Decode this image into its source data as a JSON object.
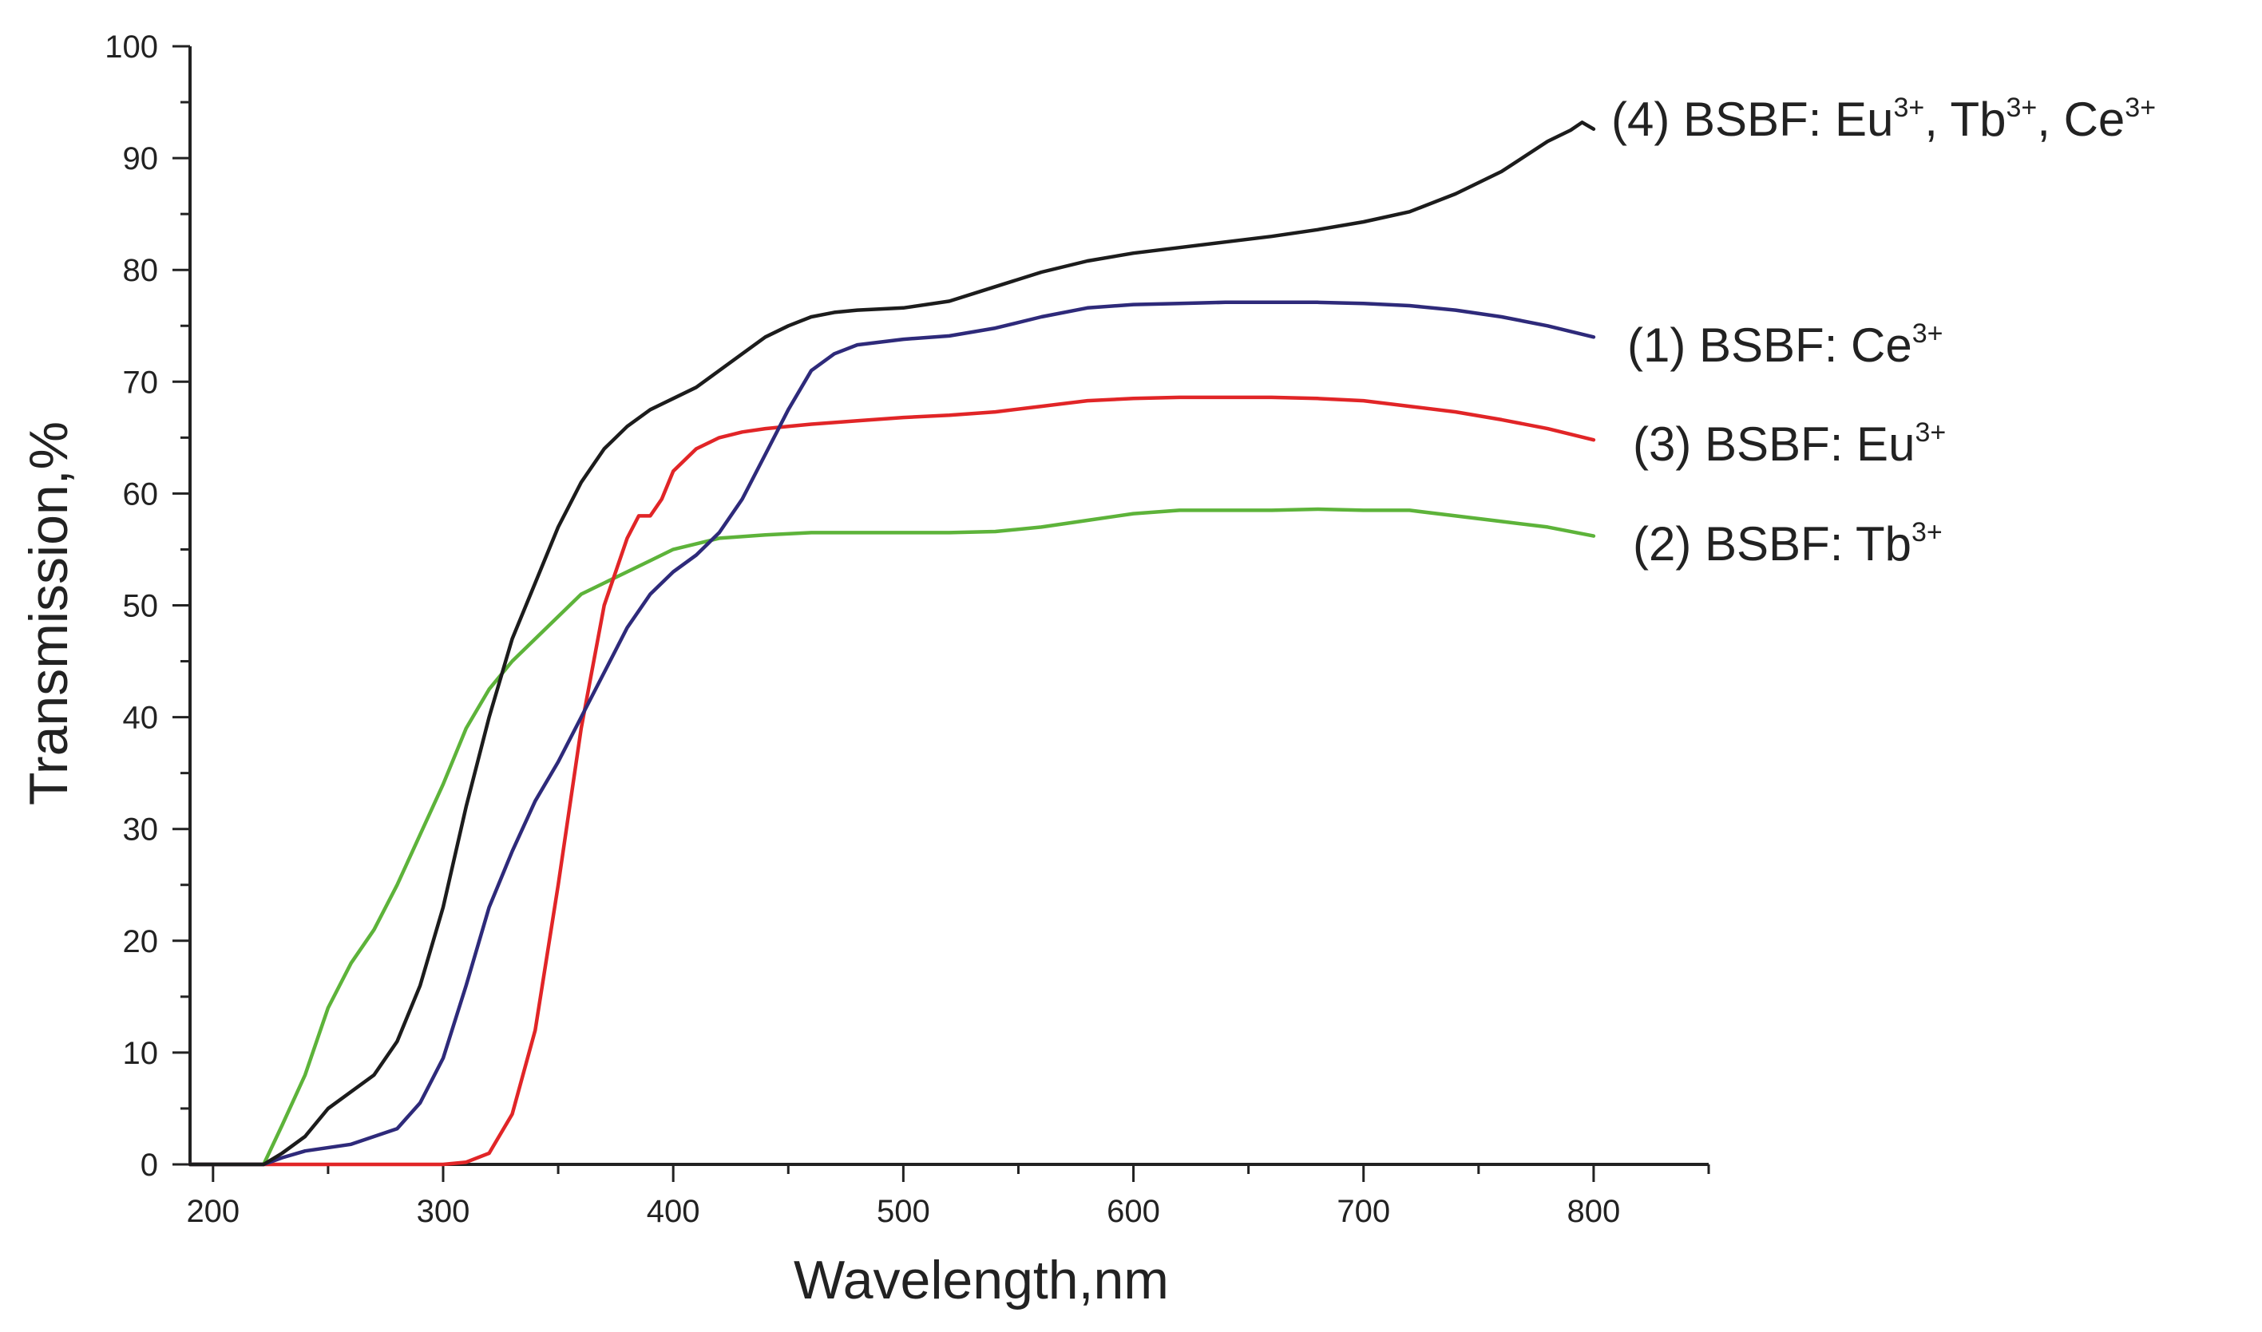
{
  "chart_data": {
    "type": "line",
    "xlabel": "Wavelength,nm",
    "ylabel": "Transmission,%",
    "xlim": [
      190,
      850
    ],
    "ylim": [
      0,
      100
    ],
    "xticks": [
      200,
      300,
      400,
      500,
      600,
      700,
      800
    ],
    "yticks": [
      0,
      10,
      20,
      30,
      40,
      50,
      60,
      70,
      80,
      90,
      100
    ],
    "grid": false,
    "series": [
      {
        "id": "s1",
        "name": "(1) BSBF: Ce",
        "sup": "3+",
        "color": "#2e2a7a",
        "x": [
          190,
          222,
          230,
          240,
          260,
          280,
          290,
          300,
          310,
          320,
          330,
          340,
          350,
          360,
          370,
          380,
          390,
          400,
          410,
          420,
          430,
          440,
          450,
          460,
          470,
          480,
          500,
          520,
          540,
          560,
          580,
          600,
          620,
          640,
          660,
          680,
          700,
          720,
          740,
          760,
          780,
          800
        ],
        "y": [
          0,
          0,
          0.6,
          1.2,
          1.8,
          3.2,
          5.5,
          9.5,
          16,
          23,
          28,
          32.5,
          36,
          40,
          44,
          48,
          51,
          53,
          54.5,
          56.5,
          59.5,
          63.5,
          67.5,
          71,
          72.5,
          73.3,
          73.8,
          74.1,
          74.8,
          75.8,
          76.6,
          76.9,
          77.0,
          77.1,
          77.1,
          77.1,
          77.0,
          76.8,
          76.4,
          75.8,
          75.0,
          74.0
        ]
      },
      {
        "id": "s2",
        "name": "(2) BSBF: Tb",
        "sup": "3+",
        "color": "#5db33a",
        "x": [
          190,
          222,
          230,
          240,
          250,
          260,
          270,
          280,
          290,
          300,
          310,
          320,
          330,
          340,
          350,
          360,
          370,
          380,
          390,
          400,
          410,
          420,
          440,
          460,
          480,
          500,
          520,
          540,
          560,
          580,
          600,
          620,
          640,
          660,
          680,
          700,
          720,
          740,
          760,
          780,
          800
        ],
        "y": [
          0,
          0,
          3.5,
          8,
          14,
          18,
          21,
          25,
          29.5,
          34,
          39,
          42.5,
          45,
          47,
          49,
          51,
          52,
          53,
          54,
          55,
          55.5,
          56,
          56.3,
          56.5,
          56.5,
          56.5,
          56.5,
          56.6,
          57.0,
          57.6,
          58.2,
          58.5,
          58.5,
          58.5,
          58.6,
          58.5,
          58.5,
          58.0,
          57.5,
          57.0,
          56.2
        ]
      },
      {
        "id": "s3",
        "name": "(3) BSBF: Eu",
        "sup": "3+",
        "color": "#e12527",
        "x": [
          190,
          300,
          310,
          320,
          330,
          340,
          350,
          360,
          370,
          380,
          385,
          390,
          395,
          400,
          410,
          420,
          430,
          440,
          450,
          460,
          480,
          500,
          520,
          540,
          560,
          580,
          600,
          620,
          640,
          660,
          680,
          700,
          720,
          740,
          760,
          780,
          800
        ],
        "y": [
          0,
          0,
          0.2,
          1,
          4.5,
          12,
          25,
          39,
          50,
          56,
          58,
          58,
          59.5,
          62,
          64,
          65,
          65.5,
          65.8,
          66,
          66.2,
          66.5,
          66.8,
          67,
          67.3,
          67.8,
          68.3,
          68.5,
          68.6,
          68.6,
          68.6,
          68.5,
          68.3,
          67.8,
          67.3,
          66.6,
          65.8,
          64.8
        ]
      },
      {
        "id": "s4",
        "name": "(4) BSBF: Eu",
        "name_part2": ", Tb",
        "name_part3": ", Ce",
        "sup": "3+",
        "color": "#1c1c1c",
        "x": [
          190,
          222,
          230,
          240,
          250,
          260,
          270,
          280,
          290,
          300,
          310,
          320,
          330,
          340,
          350,
          360,
          370,
          380,
          390,
          400,
          410,
          420,
          430,
          440,
          450,
          460,
          470,
          480,
          500,
          520,
          540,
          560,
          580,
          600,
          620,
          640,
          660,
          680,
          700,
          720,
          740,
          760,
          780,
          790,
          795,
          800
        ],
        "y": [
          0,
          0,
          1,
          2.5,
          5,
          6.5,
          8,
          11,
          16,
          23,
          32,
          40,
          47,
          52,
          57,
          61,
          64,
          66,
          67.5,
          68.5,
          69.5,
          71,
          72.5,
          74,
          75,
          75.8,
          76.2,
          76.4,
          76.6,
          77.2,
          78.5,
          79.8,
          80.8,
          81.5,
          82,
          82.5,
          83,
          83.6,
          84.3,
          85.2,
          86.8,
          88.8,
          91.5,
          92.5,
          93.2,
          92.6
        ]
      }
    ]
  }
}
